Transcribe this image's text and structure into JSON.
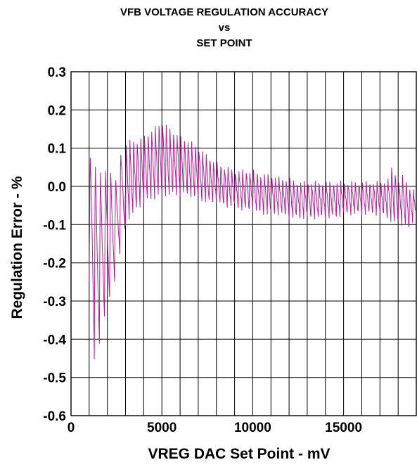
{
  "chart_data": {
    "type": "line",
    "title": [
      "VFB VOLTAGE REGULATION ACCURACY",
      "vs",
      "SET POINT"
    ],
    "xlabel": "VREG DAC Set Point - mV",
    "ylabel": "Regulation Error - %",
    "xlim": [
      0,
      19000
    ],
    "ylim": [
      -0.6,
      0.3
    ],
    "x_ticks": [
      0,
      5000,
      10000,
      15000
    ],
    "y_ticks": [
      0.3,
      0.2,
      0.1,
      0.0,
      -0.1,
      -0.2,
      -0.3,
      -0.4,
      -0.5,
      -0.6
    ],
    "y_tick_labels": [
      "0.3",
      "0.2",
      "0.1",
      "0.0",
      "-0.1",
      "-0.2",
      "-0.3",
      "-0.4",
      "-0.5",
      "-0.6"
    ],
    "x_tick_labels": [
      "0",
      "5000",
      "10000",
      "15000"
    ],
    "x_grid_step": 1000,
    "y_grid_step": 0.1,
    "grid": true,
    "legend": "none",
    "series_color": "#b0209a",
    "series": [
      {
        "x": [
          1000,
          1300,
          1600,
          1900,
          2200,
          2500,
          2800,
          3200,
          3600,
          4000,
          4500,
          5000,
          5500,
          6000,
          6500,
          7000,
          7500,
          8000,
          8500,
          9000,
          9500,
          10000,
          10500,
          11000,
          11500,
          12000,
          12500,
          13000,
          13500,
          14000,
          14500,
          15000,
          15500,
          16000,
          16500,
          17000,
          17500,
          17700,
          18000,
          18300,
          18600,
          19000
        ],
        "upper": [
          0.1,
          0.08,
          0.05,
          0.05,
          0.05,
          0.03,
          0.11,
          0.12,
          0.12,
          0.13,
          0.15,
          0.17,
          0.15,
          0.13,
          0.12,
          0.1,
          0.08,
          0.06,
          0.05,
          0.04,
          0.04,
          0.04,
          0.03,
          0.03,
          0.02,
          0.02,
          0.01,
          0.01,
          0.01,
          0.01,
          0.01,
          0.01,
          0.01,
          0.01,
          0.01,
          0.01,
          0.02,
          0.06,
          0.01,
          0.03,
          0.0,
          -0.02
        ],
        "lower": [
          -0.25,
          -0.46,
          -0.4,
          -0.33,
          -0.28,
          -0.23,
          -0.13,
          -0.08,
          -0.06,
          -0.04,
          -0.03,
          -0.02,
          -0.02,
          -0.02,
          -0.02,
          -0.03,
          -0.04,
          -0.04,
          -0.05,
          -0.05,
          -0.06,
          -0.06,
          -0.07,
          -0.07,
          -0.07,
          -0.08,
          -0.08,
          -0.08,
          -0.08,
          -0.08,
          -0.08,
          -0.07,
          -0.07,
          -0.07,
          -0.07,
          -0.07,
          -0.08,
          -0.1,
          -0.09,
          -0.1,
          -0.11,
          -0.07
        ]
      }
    ]
  }
}
